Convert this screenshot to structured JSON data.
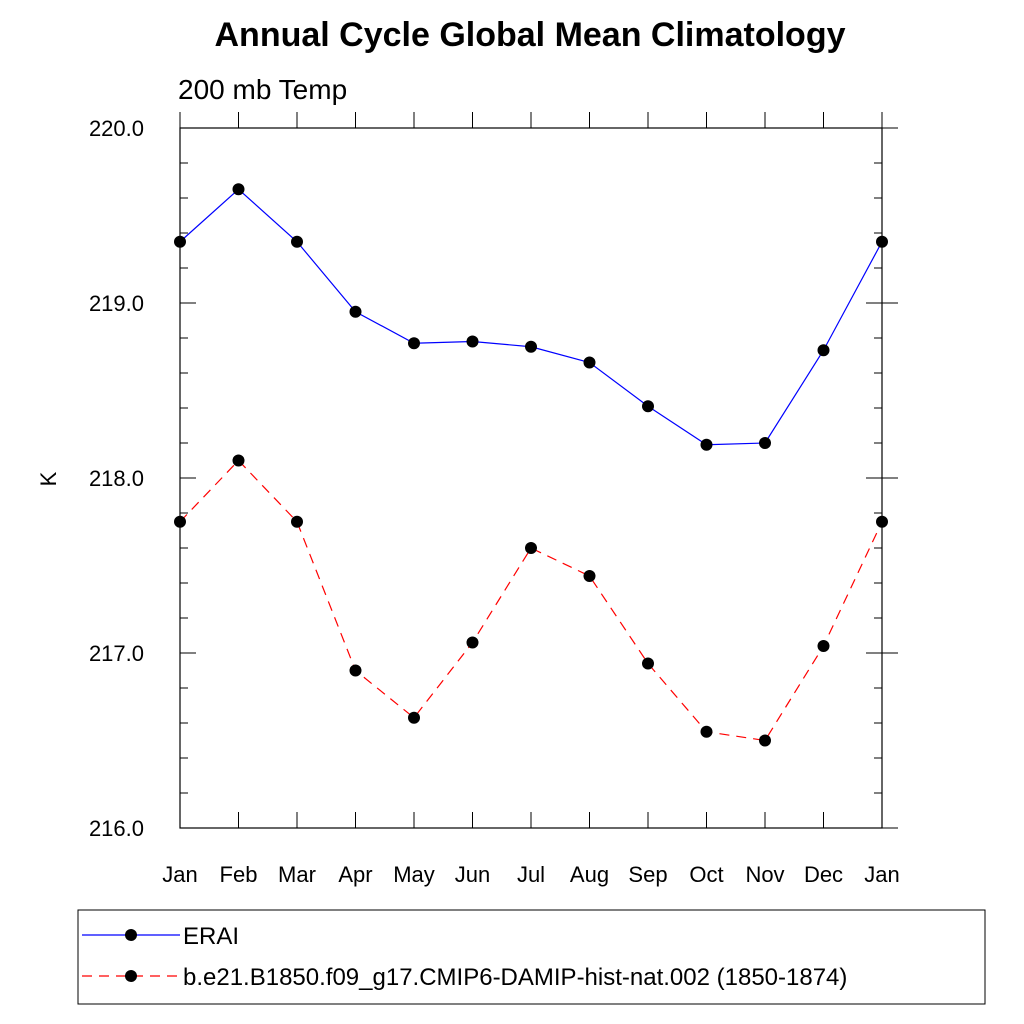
{
  "chart_data": {
    "type": "line",
    "title": "Annual Cycle Global Mean Climatology",
    "subtitle": "200 mb Temp",
    "xlabel": "",
    "ylabel": "K",
    "categories": [
      "Jan",
      "Feb",
      "Mar",
      "Apr",
      "May",
      "Jun",
      "Jul",
      "Aug",
      "Sep",
      "Oct",
      "Nov",
      "Dec",
      "Jan"
    ],
    "ylim": [
      216.0,
      220.0
    ],
    "yticks": [
      "216.0",
      "217.0",
      "218.0",
      "219.0",
      "220.0"
    ],
    "grid": false,
    "legend_position": "bottom",
    "series": [
      {
        "name": "ERAI",
        "color": "#0000ff",
        "dash": "solid",
        "marker": "filled-circle",
        "values": [
          219.35,
          219.65,
          219.35,
          218.95,
          218.77,
          218.78,
          218.75,
          218.66,
          218.41,
          218.19,
          218.2,
          218.73,
          219.35
        ]
      },
      {
        "name": "b.e21.B1850.f09_g17.CMIP6-DAMIP-hist-nat.002 (1850-1874)",
        "color": "#ff0000",
        "dash": "dashed",
        "marker": "filled-circle",
        "values": [
          217.75,
          218.1,
          217.75,
          216.9,
          216.63,
          217.06,
          217.6,
          217.44,
          216.94,
          216.55,
          216.5,
          217.04,
          217.75
        ]
      }
    ]
  }
}
